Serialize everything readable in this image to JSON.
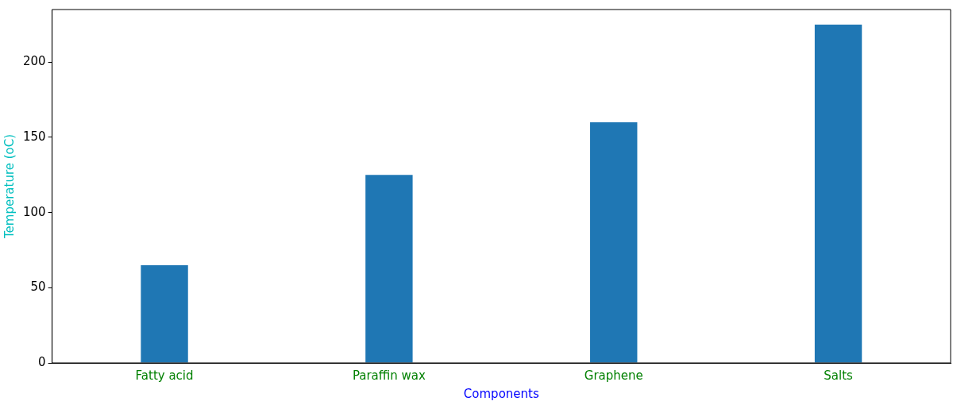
{
  "chart_data": {
    "type": "bar",
    "xlabel": "Components",
    "ylabel": "Temperature (oC)",
    "categories": [
      "Fatty acid",
      "Paraffin wax",
      "Graphene",
      "Salts"
    ],
    "values": [
      65,
      125,
      160,
      225
    ],
    "color": "#1f77b4",
    "ylim": [
      0,
      235
    ],
    "yticks": [
      0,
      50,
      100,
      150,
      200
    ],
    "grid": false,
    "legend": false
  }
}
